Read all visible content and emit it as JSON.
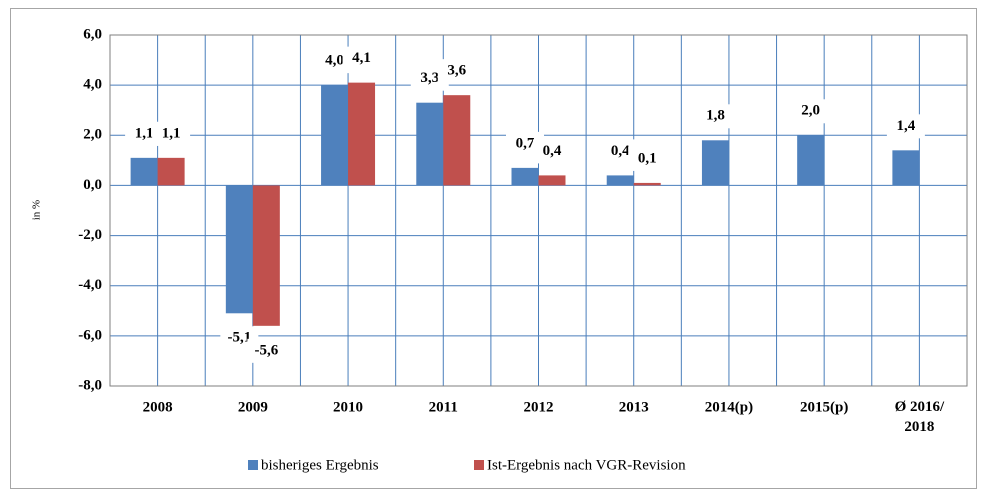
{
  "chart_data": {
    "type": "bar",
    "y_label": "in %",
    "categories": [
      "2008",
      "2009",
      "2010",
      "2011",
      "2012",
      "2013",
      "2014(p)",
      "2015(p)",
      "Ø 2016/\n2018"
    ],
    "series": [
      {
        "name": "bisheriges Ergebnis",
        "color": "#4f81bd",
        "values": [
          1.1,
          -5.1,
          4.0,
          3.3,
          0.7,
          0.4,
          1.8,
          2.0,
          1.4
        ],
        "value_labels": [
          "1,1",
          "-5,1",
          "4,0",
          "3,3",
          "0,7",
          "0,4",
          "1,8",
          "2,0",
          "1,4"
        ]
      },
      {
        "name": "Ist-Ergebnis nach VGR-Revision",
        "color": "#c0504d",
        "values": [
          1.1,
          -5.6,
          4.1,
          3.6,
          0.4,
          0.1,
          null,
          null,
          null
        ],
        "value_labels": [
          "1,1",
          "-5,6",
          "4,1",
          "3,6",
          "0,4",
          "0,1",
          null,
          null,
          null
        ]
      }
    ],
    "ylim": [
      -8,
      6
    ],
    "yticks": [
      {
        "value": -8,
        "label": "-8,0"
      },
      {
        "value": -6,
        "label": "-6,0"
      },
      {
        "value": -4,
        "label": "-4,0"
      },
      {
        "value": -2,
        "label": "-2,0"
      },
      {
        "value": 0,
        "label": "0,0"
      },
      {
        "value": 2,
        "label": "2,0"
      },
      {
        "value": 4,
        "label": "4,0"
      },
      {
        "value": 6,
        "label": "6,0"
      }
    ],
    "grid": true,
    "legend": "bottom"
  }
}
